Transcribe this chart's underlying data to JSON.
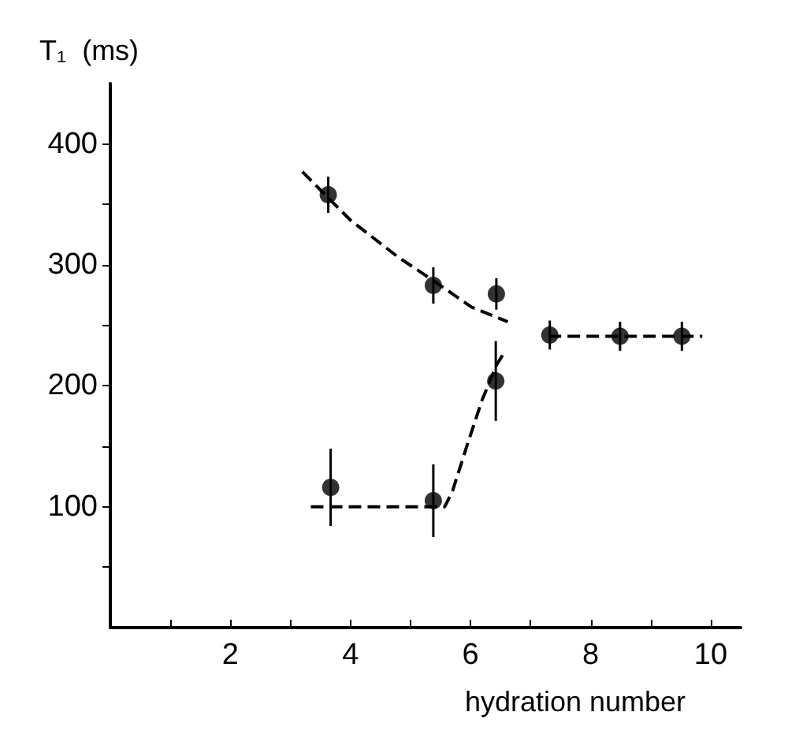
{
  "chart_data": {
    "type": "scatter",
    "xlabel": "hydration number",
    "ylabel": "T₁  (ms)",
    "xlim": [
      0,
      10.5
    ],
    "ylim": [
      0,
      450
    ],
    "xticks": [
      {
        "value": 1,
        "label": null
      },
      2,
      {
        "value": 3,
        "label": null
      },
      4,
      {
        "value": 5,
        "label": null
      },
      6,
      {
        "value": 7,
        "label": null
      },
      8,
      {
        "value": 9,
        "label": null
      },
      10
    ],
    "yticks": [
      {
        "value": 50,
        "label": null
      },
      100,
      {
        "value": 150,
        "label": null
      },
      200,
      {
        "value": 250,
        "label": null
      },
      300,
      {
        "value": 350,
        "label": null
      },
      400
    ],
    "marker": "circle",
    "series": [
      {
        "color": "#000000",
        "x": [
          3.63,
          5.38,
          6.43,
          7.32,
          8.49,
          9.52
        ],
        "values": [
          358,
          283,
          276,
          242,
          241,
          241
        ],
        "errors": [
          15,
          15,
          13,
          12,
          12,
          12
        ]
      },
      {
        "color": "#000000",
        "x": [
          3.67,
          5.38,
          6.42
        ],
        "values": [
          116,
          105,
          204
        ],
        "errors": [
          32,
          30,
          33
        ]
      },
      {
        "type": "line",
        "color": "#000000",
        "line_style": "dashed",
        "marker": "none",
        "x": [
          3.2,
          4.0,
          4.78,
          5.38,
          6.02,
          6.62
        ],
        "values": [
          377,
          337,
          307,
          287,
          265,
          253
        ]
      },
      {
        "type": "line",
        "color": "#000000",
        "line_style": "dashed",
        "marker": "none",
        "x": [
          7.3,
          9.86
        ],
        "values": [
          241,
          241
        ]
      },
      {
        "type": "line",
        "color": "#000000",
        "line_style": "dashed",
        "marker": "none",
        "x": [
          3.34,
          5.57,
          5.7,
          5.95,
          6.19,
          6.43,
          6.58
        ],
        "values": [
          100,
          100,
          113,
          152,
          188,
          217,
          229
        ]
      }
    ]
  }
}
